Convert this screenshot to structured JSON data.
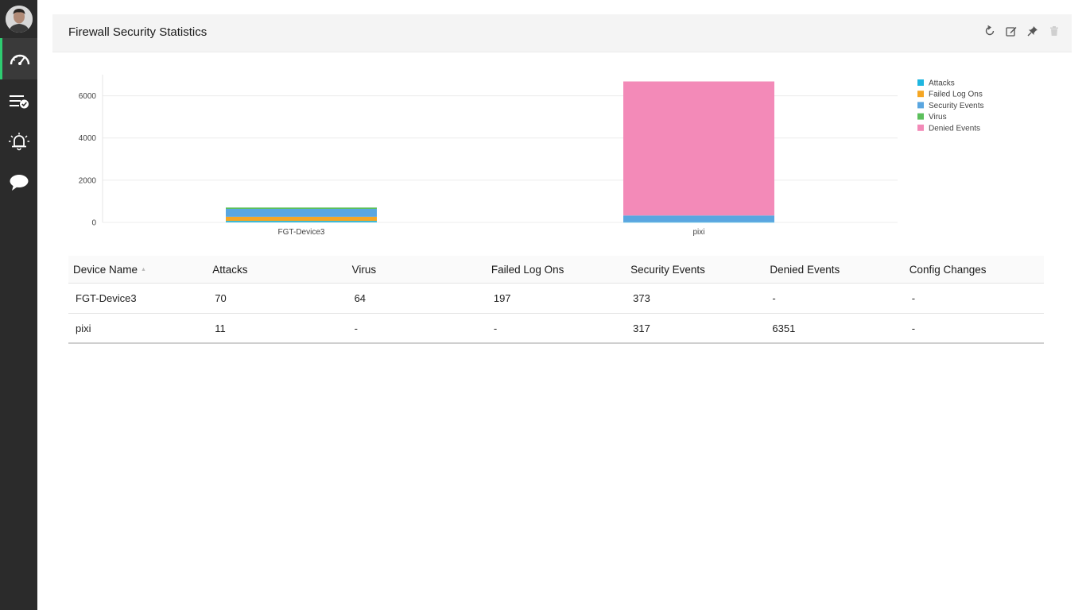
{
  "sidebar": {
    "avatar": "user-avatar",
    "items": [
      {
        "name": "dashboard",
        "icon": "speedometer-icon",
        "active": true
      },
      {
        "name": "reports",
        "icon": "list-check-icon",
        "active": false
      },
      {
        "name": "alerts",
        "icon": "alarm-bell-icon",
        "active": false
      },
      {
        "name": "messages",
        "icon": "chat-bubble-icon",
        "active": false
      }
    ],
    "accent_color": "#2ecc71"
  },
  "widget": {
    "title": "Firewall Security Statistics",
    "actions": [
      {
        "name": "refresh",
        "icon": "refresh-icon"
      },
      {
        "name": "edit",
        "icon": "edit-icon"
      },
      {
        "name": "pin",
        "icon": "pin-icon"
      },
      {
        "name": "delete",
        "icon": "trash-icon"
      }
    ]
  },
  "chart_data": {
    "type": "bar",
    "stacked": true,
    "categories": [
      "FGT-Device3",
      "pixi"
    ],
    "series": [
      {
        "name": "Attacks",
        "color": "#1fb6e0",
        "values": [
          70,
          11
        ]
      },
      {
        "name": "Failed Log Ons",
        "color": "#f5a623",
        "values": [
          197,
          0
        ]
      },
      {
        "name": "Security Events",
        "color": "#5aa6e0",
        "values": [
          373,
          317
        ]
      },
      {
        "name": "Virus",
        "color": "#5cbf5c",
        "values": [
          64,
          0
        ]
      },
      {
        "name": "Denied Events",
        "color": "#f38ab8",
        "values": [
          0,
          6351
        ]
      }
    ],
    "yticks": [
      "0",
      "2000",
      "4000",
      "6000"
    ],
    "ylim": [
      0,
      7000
    ],
    "legend_position": "top-right",
    "grid": true
  },
  "table": {
    "sorted_column": "Device Name",
    "headers": [
      "Device Name",
      "Attacks",
      "Virus",
      "Failed Log Ons",
      "Security Events",
      "Denied Events",
      "Config Changes"
    ],
    "rows": [
      [
        "FGT-Device3",
        "70",
        "64",
        "197",
        "373",
        "-",
        "-"
      ],
      [
        "pixi",
        "11",
        "-",
        "-",
        "317",
        "6351",
        "-"
      ]
    ]
  }
}
